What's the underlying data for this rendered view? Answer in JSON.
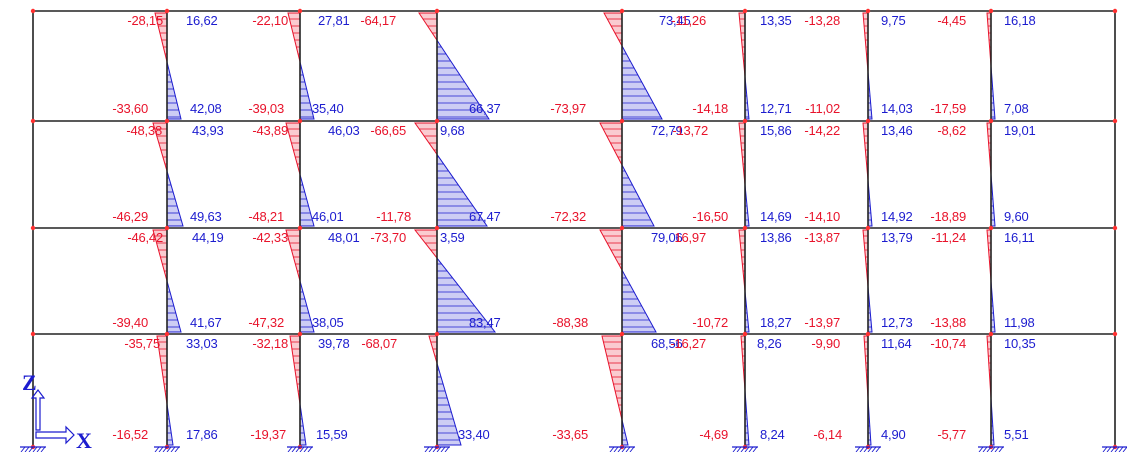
{
  "colors": {
    "positive": "#e8132b",
    "negative": "#1c1ccf",
    "frame": "#222222",
    "node": "#ff3030"
  },
  "axes": {
    "vertical": "Z",
    "horizontal": "X"
  },
  "storeys": [
    {
      "top": [
        [
          "-28,15",
          "16,62",
          "-22,10",
          "27,81",
          "-64,17",
          "",
          "73,45",
          "-11,26",
          "13,35",
          "-13,28",
          "9,75",
          "-4,45",
          "16,18"
        ]
      ],
      "bottom": [
        [
          "-33,60",
          "42,08",
          "-39,03",
          "35,40",
          "66,37",
          "-73,97",
          "-14,18",
          "12,71",
          "-11,02",
          "14,03",
          "-17,59",
          "7,08"
        ]
      ]
    },
    {
      "top": [
        [
          "-48,38",
          "43,93",
          "-43,89",
          "46,03",
          "-66,65",
          "9,68",
          "72,79",
          "-13,72",
          "15,86",
          "-14,22",
          "13,46",
          "-8,62",
          "19,01"
        ]
      ],
      "bottom": [
        [
          "-46,29",
          "49,63",
          "-48,21",
          "46,01",
          "-11,78",
          "67,47",
          "-72,32",
          "-16,50",
          "14,69",
          "-14,10",
          "14,92",
          "-18,89",
          "9,60"
        ]
      ]
    },
    {
      "top": [
        [
          "-46,42",
          "44,19",
          "-42,33",
          "48,01",
          "-73,70",
          "3,59",
          "79,06",
          "16,97",
          "13,86",
          "-13,87",
          "13,79",
          "-11,24",
          "16,11"
        ]
      ],
      "bottom": [
        [
          "-39,40",
          "41,67",
          "-47,32",
          "38,05",
          "83,47",
          "-88,38",
          "-10,72",
          "18,27",
          "-13,97",
          "12,73",
          "-13,88",
          "11,98"
        ]
      ]
    },
    {
      "top": [
        [
          "-35,75",
          "33,03",
          "-32,18",
          "39,78",
          "-68,07",
          "68,56",
          "-16,27",
          "8,26",
          "-9,90",
          "11,64",
          "-10,74",
          "10,35"
        ]
      ],
      "bottom": [
        [
          "-16,52",
          "17,86",
          "-19,37",
          "15,59",
          "33,40",
          "-33,65",
          "-4,69",
          "8,24",
          "-6,14",
          "4,90",
          "-5,77",
          "5,51"
        ]
      ]
    }
  ]
}
